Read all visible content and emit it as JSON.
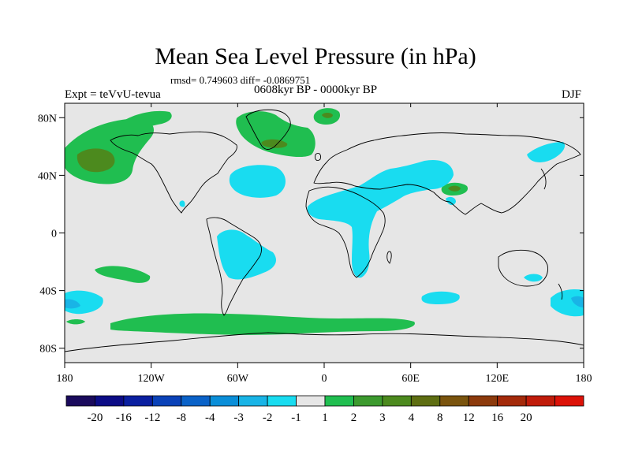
{
  "title": "Mean Sea Level Pressure (in hPa)",
  "stats": "rmsd= 0.749603 diff= -0.0869751",
  "period": "0608kyr BP - 0000kyr BP",
  "expt": "Expt = teVvU-tevua",
  "season": "DJF",
  "map": {
    "projection": "cylindrical-equidistant",
    "lon_range": [
      -180,
      180
    ],
    "lat_range": [
      -90,
      90
    ],
    "background_color": "#e6e6e6",
    "lat_ticks": [
      {
        "value": 80,
        "label": "80N"
      },
      {
        "value": 40,
        "label": "40N"
      },
      {
        "value": 0,
        "label": "0"
      },
      {
        "value": -40,
        "label": "40S"
      },
      {
        "value": -80,
        "label": "80S"
      }
    ],
    "lon_ticks": [
      {
        "value": -180,
        "label": "180"
      },
      {
        "value": -120,
        "label": "120W"
      },
      {
        "value": -60,
        "label": "60W"
      },
      {
        "value": 0,
        "label": "0"
      },
      {
        "value": 60,
        "label": "60E"
      },
      {
        "value": 120,
        "label": "120E"
      },
      {
        "value": 180,
        "label": "180"
      }
    ]
  },
  "colorbar": {
    "colors": [
      "#1a0a5c",
      "#0c0c86",
      "#0a1fa0",
      "#0a42b8",
      "#0a62c8",
      "#0a8ed8",
      "#19b4e6",
      "#19dcf0",
      "#e6e6e6",
      "#20be50",
      "#3c9a2e",
      "#4c8a1e",
      "#5e6e12",
      "#7a540e",
      "#8c3a0c",
      "#a42a0a",
      "#c01c0a",
      "#dc1208"
    ],
    "labels": [
      "-20",
      "-16",
      "-12",
      "-8",
      "-4",
      "-3",
      "-2",
      "-1",
      "1",
      "2",
      "3",
      "4",
      "8",
      "12",
      "16",
      "20"
    ]
  }
}
